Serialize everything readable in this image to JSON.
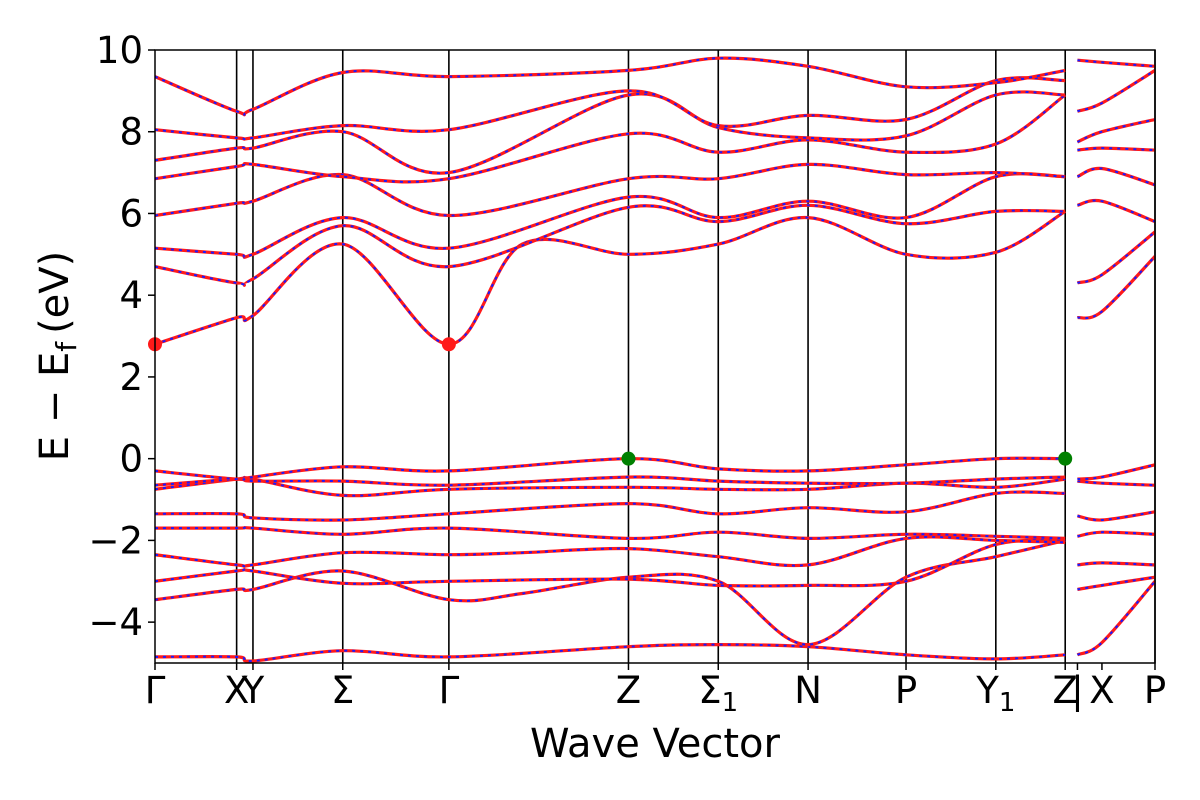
{
  "chart_data": {
    "type": "line",
    "xlabel": "Wave Vector",
    "ylabel": "E − E",
    "ylabel_sub": "f",
    "ylabel_unit": "(eV)",
    "ylim": [
      -5,
      10
    ],
    "yticks": [
      10,
      8,
      6,
      4,
      2,
      0,
      -2,
      -4
    ],
    "ytick_labels": [
      "10",
      "8",
      "6",
      "4",
      "2",
      "0",
      "−2",
      "−4"
    ],
    "xlim": [
      0,
      12.25
    ],
    "kpoints": [
      {
        "pos": 0.0,
        "label": "Γ"
      },
      {
        "pos": 1.0,
        "label": "X"
      },
      {
        "pos": 1.2,
        "label": "Y"
      },
      {
        "pos": 2.3,
        "label": "Σ"
      },
      {
        "pos": 3.6,
        "label": "Γ"
      },
      {
        "pos": 5.8,
        "label": "Z"
      },
      {
        "pos": 6.9,
        "label": "Σ",
        "sub": "1"
      },
      {
        "pos": 8.0,
        "label": "N"
      },
      {
        "pos": 9.2,
        "label": "P"
      },
      {
        "pos": 10.3,
        "label": "Y",
        "sub": "1"
      },
      {
        "pos": 11.15,
        "label": "Z"
      },
      {
        "pos": 11.3,
        "label": "|"
      },
      {
        "pos": 11.6,
        "label": "X"
      },
      {
        "pos": 12.25,
        "label": "P"
      }
    ],
    "divider_positions": [
      1.0,
      1.2,
      2.3,
      3.6,
      5.8,
      6.9,
      8.0,
      9.2,
      10.3,
      11.15,
      12.25
    ],
    "band_color_primary": "#ff1a1a",
    "band_color_dashed": "#1a1aff",
    "highlight_points": [
      {
        "x": 0.0,
        "y": 2.8,
        "color": "#ff1a1a"
      },
      {
        "x": 3.6,
        "y": 2.8,
        "color": "#ff1a1a"
      },
      {
        "x": 5.8,
        "y": 0.0,
        "color": "#008000"
      },
      {
        "x": 11.15,
        "y": 0.0,
        "color": "#008000"
      }
    ],
    "series": [
      {
        "x": [
          0,
          1,
          1.2,
          2.3,
          3.6,
          5.8,
          6.9,
          8,
          9.2,
          10.3,
          11.15
        ],
        "y": [
          -4.85,
          -4.85,
          -4.95,
          -4.7,
          -4.85,
          -4.6,
          -4.55,
          -4.6,
          -4.8,
          -4.9,
          -4.8
        ]
      },
      {
        "x": [
          0,
          1,
          1.2,
          2.3,
          3.6,
          4.5,
          5.8,
          6.9,
          8,
          9.2,
          10.3,
          11.15
        ],
        "y": [
          -3.45,
          -3.2,
          -3.2,
          -2.75,
          -3.45,
          -3.3,
          -2.9,
          -3.0,
          -4.55,
          -2.9,
          -2.4,
          -2.0
        ]
      },
      {
        "x": [
          0,
          1,
          1.2,
          2.3,
          3.6,
          5.8,
          6.9,
          8,
          9.2,
          10.3,
          11.15
        ],
        "y": [
          -3.0,
          -2.75,
          -2.75,
          -3.05,
          -3.0,
          -2.95,
          -3.1,
          -3.1,
          -3.0,
          -2.1,
          -2.0
        ]
      },
      {
        "x": [
          0,
          1,
          1.2,
          2.3,
          3.6,
          4.5,
          5.8,
          6.9,
          8,
          9.2,
          10.3,
          11.15
        ],
        "y": [
          -2.35,
          -2.6,
          -2.6,
          -2.3,
          -2.35,
          -2.3,
          -2.2,
          -2.4,
          -2.6,
          -1.95,
          -2.0,
          -2.05
        ]
      },
      {
        "x": [
          0,
          1,
          1.2,
          2.3,
          3.6,
          5.8,
          6.9,
          8,
          9.2,
          10.3,
          11.15
        ],
        "y": [
          -1.7,
          -1.7,
          -1.7,
          -1.85,
          -1.7,
          -1.95,
          -1.8,
          -1.95,
          -1.85,
          -1.9,
          -1.95
        ]
      },
      {
        "x": [
          0,
          1,
          1.2,
          2.3,
          3.6,
          5.8,
          6.9,
          8,
          9.2,
          10.3,
          11.15
        ],
        "y": [
          -1.35,
          -1.35,
          -1.45,
          -1.5,
          -1.35,
          -1.1,
          -1.35,
          -1.2,
          -1.3,
          -0.85,
          -0.85
        ]
      },
      {
        "x": [
          0,
          1,
          1.2,
          2.3,
          3.6,
          5.8,
          6.9,
          8,
          9.2,
          10.3,
          11.15
        ],
        "y": [
          -0.75,
          -0.5,
          -0.5,
          -0.9,
          -0.75,
          -0.7,
          -0.75,
          -0.75,
          -0.6,
          -0.7,
          -0.5
        ]
      },
      {
        "x": [
          0,
          1,
          1.2,
          2.3,
          3.6,
          5.8,
          6.9,
          8,
          9.2,
          10.3,
          11.15
        ],
        "y": [
          -0.65,
          -0.5,
          -0.55,
          -0.55,
          -0.65,
          -0.45,
          -0.55,
          -0.6,
          -0.6,
          -0.5,
          -0.45
        ]
      },
      {
        "x": [
          0,
          1,
          1.2,
          2.3,
          3.6,
          5.8,
          6.9,
          8,
          9.2,
          10.3,
          11.15
        ],
        "y": [
          -0.3,
          -0.5,
          -0.45,
          -0.2,
          -0.3,
          0.0,
          -0.25,
          -0.3,
          -0.15,
          0.0,
          0.0
        ]
      },
      {
        "x": [
          0,
          1,
          1.2,
          2.3,
          3.6,
          4.5,
          5.8,
          6.9,
          8,
          9.2,
          10.3,
          11.15
        ],
        "y": [
          2.8,
          3.45,
          3.5,
          5.25,
          2.8,
          5.25,
          5.0,
          5.25,
          5.9,
          5.0,
          5.05,
          6.05
        ]
      },
      {
        "x": [
          0,
          1,
          1.2,
          2.3,
          3.6,
          5.8,
          6.9,
          8,
          9.2,
          10.3,
          11.15
        ],
        "y": [
          4.7,
          4.3,
          4.4,
          5.7,
          4.7,
          6.15,
          5.8,
          6.2,
          5.75,
          6.05,
          6.05
        ]
      },
      {
        "x": [
          0,
          1,
          1.2,
          2.3,
          3.6,
          5.8,
          6.9,
          8,
          9.2,
          10.3,
          11.15
        ],
        "y": [
          5.15,
          5.0,
          5.0,
          5.9,
          5.15,
          6.4,
          5.9,
          6.3,
          5.9,
          6.9,
          6.9
        ]
      },
      {
        "x": [
          0,
          1,
          1.2,
          2.3,
          3.6,
          5.8,
          6.9,
          8,
          9.2,
          10.3,
          11.15
        ],
        "y": [
          5.95,
          6.25,
          6.3,
          6.95,
          5.95,
          6.85,
          6.85,
          7.2,
          6.95,
          7.0,
          6.9
        ]
      },
      {
        "x": [
          0,
          1,
          1.2,
          2.3,
          3.6,
          5.8,
          6.9,
          8,
          9.2,
          10.3,
          11.15
        ],
        "y": [
          6.85,
          7.15,
          7.2,
          6.9,
          6.85,
          7.95,
          7.5,
          7.8,
          7.5,
          7.7,
          8.9
        ]
      },
      {
        "x": [
          0,
          1,
          1.2,
          2.3,
          3.6,
          5.8,
          6.9,
          8,
          9.2,
          10.3,
          11.15
        ],
        "y": [
          7.3,
          7.6,
          7.6,
          8.0,
          7.0,
          8.9,
          8.1,
          7.85,
          7.9,
          8.9,
          8.9
        ]
      },
      {
        "x": [
          0,
          1,
          1.2,
          2.3,
          3.6,
          5.8,
          6.9,
          8,
          9.2,
          10.3,
          11.15
        ],
        "y": [
          8.05,
          7.85,
          7.85,
          8.15,
          8.05,
          9.0,
          8.15,
          8.4,
          8.3,
          9.25,
          9.25
        ]
      },
      {
        "x": [
          0,
          1,
          1.2,
          2.3,
          3.6,
          5.8,
          6.9,
          8,
          9.2,
          10.3,
          11.15
        ],
        "y": [
          9.35,
          8.5,
          8.55,
          9.45,
          9.35,
          9.5,
          9.8,
          9.6,
          9.1,
          9.2,
          9.5
        ]
      },
      {
        "x": [
          11.3,
          11.6,
          12.25
        ],
        "y": [
          -4.8,
          -4.5,
          -3.0
        ]
      },
      {
        "x": [
          11.3,
          11.6,
          12.25
        ],
        "y": [
          -3.2,
          -3.1,
          -2.9
        ]
      },
      {
        "x": [
          11.3,
          11.6,
          12.25
        ],
        "y": [
          -2.6,
          -2.55,
          -2.6
        ]
      },
      {
        "x": [
          11.3,
          11.6,
          12.25
        ],
        "y": [
          -1.9,
          -1.8,
          -1.85
        ]
      },
      {
        "x": [
          11.3,
          11.6,
          12.25
        ],
        "y": [
          -1.4,
          -1.5,
          -1.3
        ]
      },
      {
        "x": [
          11.3,
          11.6,
          12.25
        ],
        "y": [
          -0.55,
          -0.6,
          -0.65
        ]
      },
      {
        "x": [
          11.3,
          11.6,
          12.25
        ],
        "y": [
          -0.5,
          -0.45,
          -0.15
        ]
      },
      {
        "x": [
          11.3,
          11.6,
          12.25
        ],
        "y": [
          3.45,
          3.6,
          4.95
        ]
      },
      {
        "x": [
          11.3,
          11.6,
          12.25
        ],
        "y": [
          4.3,
          4.5,
          5.55
        ]
      },
      {
        "x": [
          11.3,
          11.6,
          12.25
        ],
        "y": [
          6.2,
          6.3,
          5.8
        ]
      },
      {
        "x": [
          11.3,
          11.6,
          12.25
        ],
        "y": [
          6.9,
          7.1,
          6.7
        ]
      },
      {
        "x": [
          11.3,
          11.6,
          12.25
        ],
        "y": [
          7.55,
          7.6,
          7.55
        ]
      },
      {
        "x": [
          11.3,
          11.6,
          12.25
        ],
        "y": [
          7.75,
          8.0,
          8.3
        ]
      },
      {
        "x": [
          11.3,
          11.6,
          12.25
        ],
        "y": [
          8.5,
          8.7,
          9.5
        ]
      },
      {
        "x": [
          11.3,
          11.6,
          12.25
        ],
        "y": [
          9.75,
          9.7,
          9.6
        ]
      }
    ]
  }
}
